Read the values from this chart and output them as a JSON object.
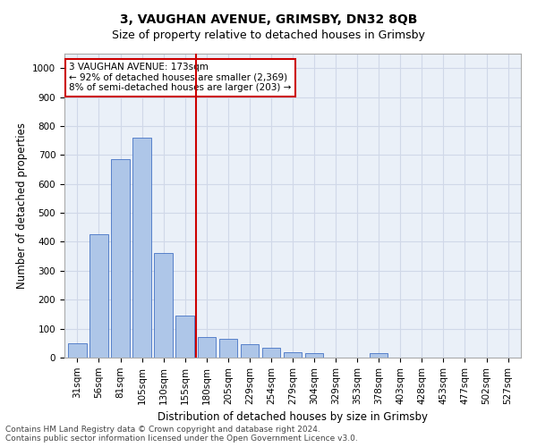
{
  "title": "3, VAUGHAN AVENUE, GRIMSBY, DN32 8QB",
  "subtitle": "Size of property relative to detached houses in Grimsby",
  "xlabel": "Distribution of detached houses by size in Grimsby",
  "ylabel": "Number of detached properties",
  "bar_labels": [
    "31sqm",
    "56sqm",
    "81sqm",
    "105sqm",
    "130sqm",
    "155sqm",
    "180sqm",
    "205sqm",
    "229sqm",
    "254sqm",
    "279sqm",
    "304sqm",
    "329sqm",
    "353sqm",
    "378sqm",
    "403sqm",
    "428sqm",
    "453sqm",
    "477sqm",
    "502sqm",
    "527sqm"
  ],
  "bar_values": [
    50,
    425,
    685,
    760,
    360,
    145,
    70,
    65,
    45,
    35,
    20,
    15,
    0,
    0,
    15,
    0,
    0,
    0,
    0,
    0,
    0
  ],
  "bar_color": "#aec6e8",
  "bar_edge_color": "#4472c4",
  "grid_color": "#d0d8e8",
  "background_color": "#eaf0f8",
  "vline_index": 6,
  "vline_color": "#cc0000",
  "annotation_text": "3 VAUGHAN AVENUE: 173sqm\n← 92% of detached houses are smaller (2,369)\n8% of semi-detached houses are larger (203) →",
  "annotation_box_color": "#cc0000",
  "ylim": [
    0,
    1050
  ],
  "yticks": [
    0,
    100,
    200,
    300,
    400,
    500,
    600,
    700,
    800,
    900,
    1000
  ],
  "footer1": "Contains HM Land Registry data © Crown copyright and database right 2024.",
  "footer2": "Contains public sector information licensed under the Open Government Licence v3.0.",
  "title_fontsize": 10,
  "subtitle_fontsize": 9,
  "xlabel_fontsize": 8.5,
  "ylabel_fontsize": 8.5,
  "tick_fontsize": 7.5,
  "annotation_fontsize": 7.5,
  "footer_fontsize": 6.5
}
